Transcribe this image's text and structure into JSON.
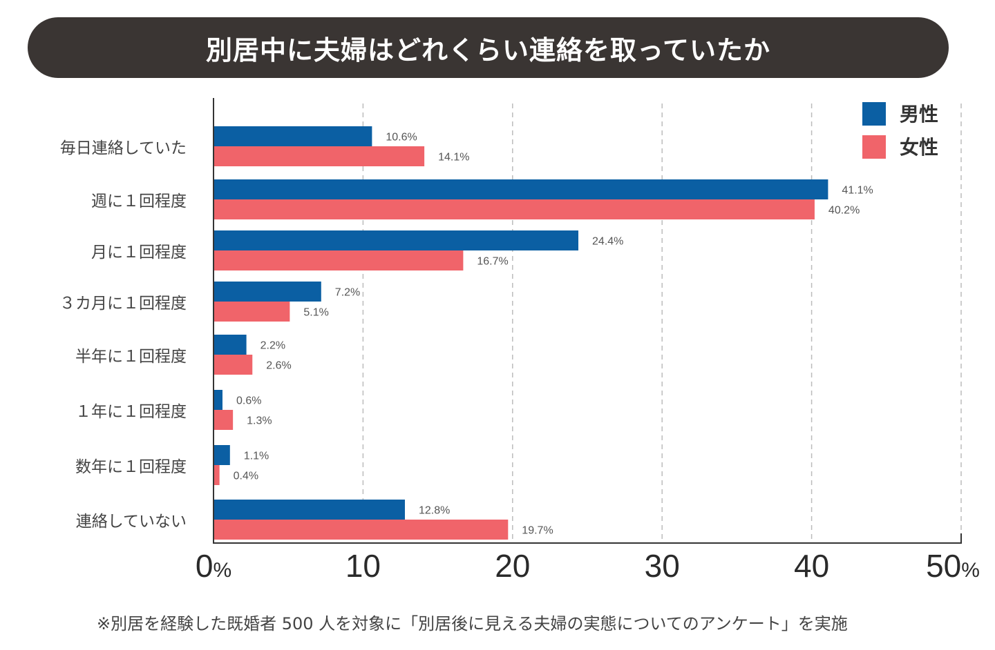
{
  "colors": {
    "male": "#0b5fa3",
    "female": "#f0646a",
    "title_bg": "#3a3533"
  },
  "chart_data": {
    "type": "bar",
    "orientation": "horizontal",
    "title": "別居中に夫婦はどれくらい連絡を取っていたか",
    "categories": [
      "毎日連絡していた",
      "週に１回程度",
      "月に１回程度",
      "３カ月に１回程度",
      "半年に１回程度",
      "１年に１回程度",
      "数年に１回程度",
      "連絡していない"
    ],
    "series": [
      {
        "name": "男性",
        "color": "#0b5fa3",
        "values": [
          10.6,
          41.1,
          24.4,
          7.2,
          2.2,
          0.6,
          1.1,
          12.8
        ],
        "labels": [
          "10.6%",
          "41.1%",
          "24.4%",
          "7.2%",
          "2.2%",
          "0.6%",
          "1.1%",
          "12.8%"
        ]
      },
      {
        "name": "女性",
        "color": "#f0646a",
        "values": [
          14.1,
          40.2,
          16.7,
          5.1,
          2.6,
          1.3,
          0.4,
          19.7
        ],
        "labels": [
          "14.1%",
          "40.2%",
          "16.7%",
          "5.1%",
          "2.6%",
          "1.3%",
          "0.4%",
          "19.7%"
        ]
      }
    ],
    "xlim": [
      0,
      50
    ],
    "xticks": [
      0,
      10,
      20,
      30,
      40,
      50
    ],
    "xtick_labels": [
      "0",
      "10",
      "20",
      "30",
      "40",
      "50"
    ],
    "unit": "%",
    "grid": "vertical dashed",
    "legend_position": "top-right"
  },
  "footnote": "※別居を経験した既婚者 500 人を対象に「別居後に見える夫婦の実態についてのアンケート」を実施"
}
